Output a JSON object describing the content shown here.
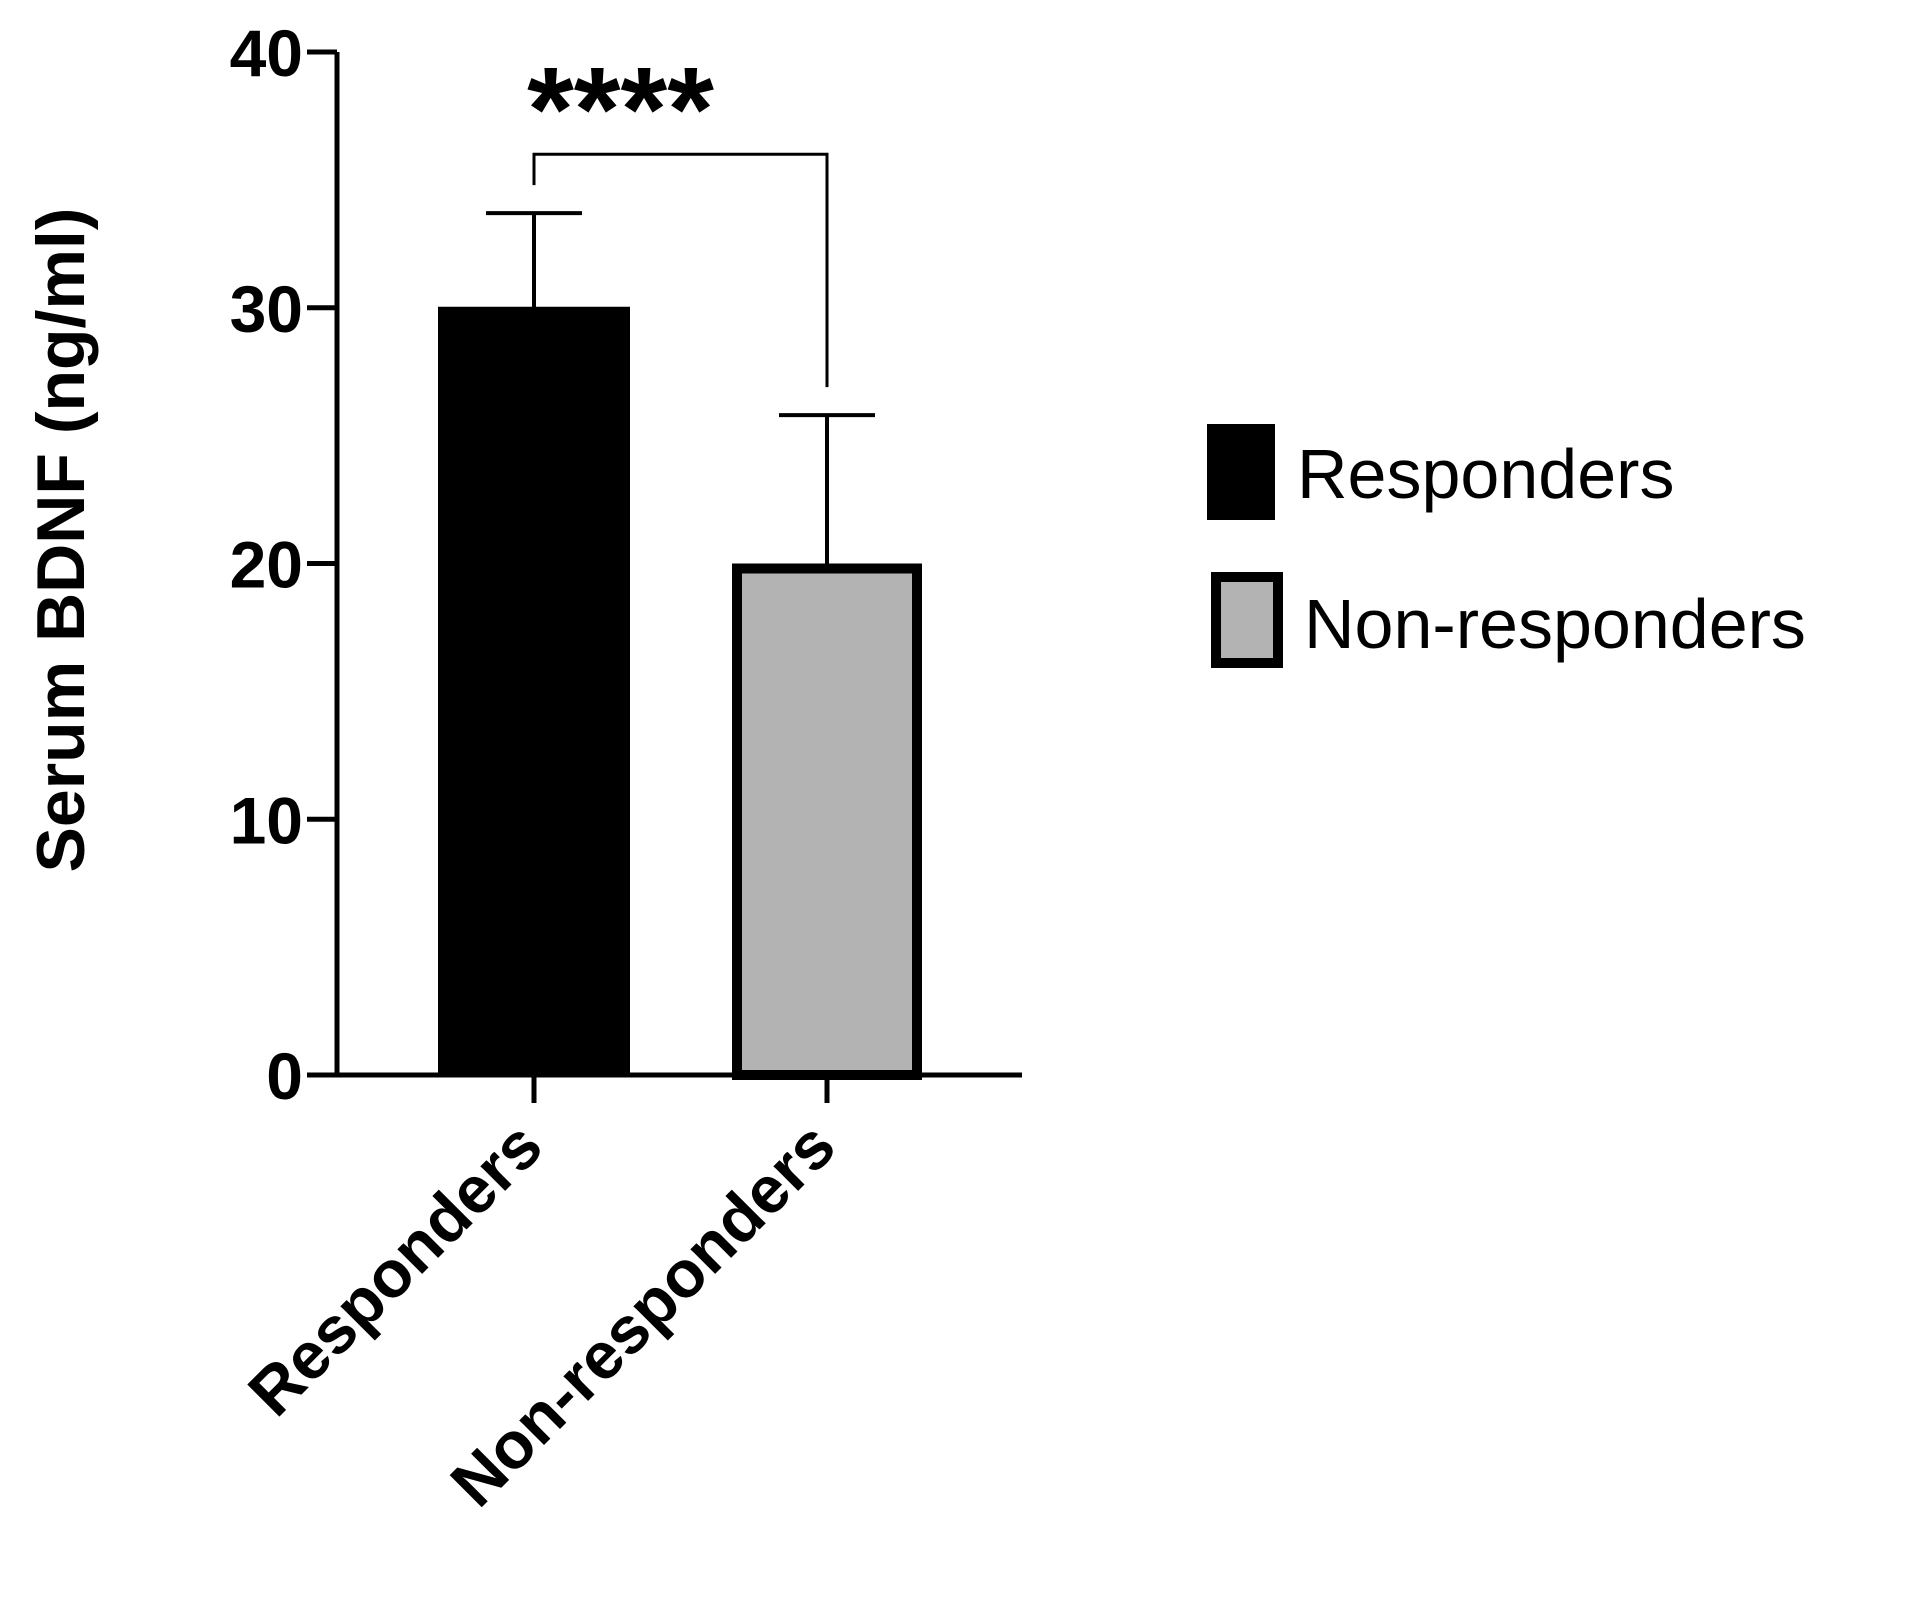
{
  "chart_data": {
    "type": "bar",
    "title": "",
    "xlabel": "",
    "ylabel": "Serum BDNF (ng/ml)",
    "ylim": [
      0,
      40
    ],
    "yticks": [
      0,
      10,
      20,
      30,
      40
    ],
    "categories": [
      "Responders",
      "Non-responders"
    ],
    "values": [
      30,
      20
    ],
    "error_bars": [
      3.7,
      5.8
    ],
    "colors": [
      "#000000",
      "#b3b3b3"
    ],
    "legend": {
      "position": "right",
      "entries": [
        {
          "label": "Responders",
          "color": "#000000"
        },
        {
          "label": "Non-responders",
          "color": "#b3b3b3"
        }
      ]
    },
    "significance": {
      "between": [
        "Responders",
        "Non-responders"
      ],
      "label": "****"
    },
    "grid": false
  }
}
